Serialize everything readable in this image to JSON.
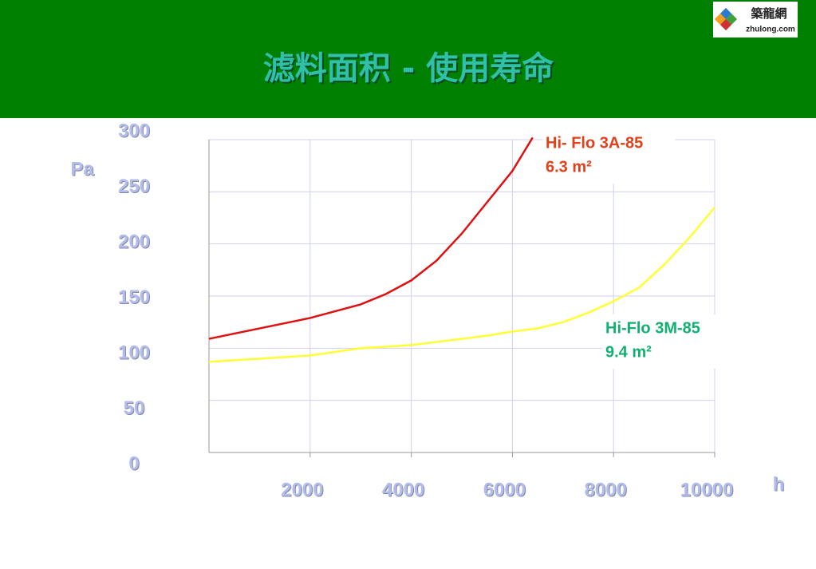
{
  "logo": {
    "name": "築龍網",
    "site": "zhulong.com"
  },
  "chart_data": {
    "type": "line",
    "title": "滤料面积 - 使用寿命",
    "y_label": "Pa",
    "x_label": "h",
    "xlim": [
      0,
      10000
    ],
    "xticks": [
      2000,
      4000,
      6000,
      8000,
      10000
    ],
    "ylim": [
      0,
      300
    ],
    "yticks": [
      0,
      50,
      100,
      150,
      200,
      250,
      300
    ],
    "grid": true,
    "series": [
      {
        "name": "Hi- Flo 3A-85",
        "label": "6.3 m²",
        "color": "#e01010",
        "x": [
          0,
          2000,
          3000,
          3500,
          4000,
          4500,
          5000,
          5500,
          6000,
          6400
        ],
        "values": [
          109,
          129,
          142,
          152,
          165,
          184,
          210,
          240,
          270,
          302
        ]
      },
      {
        "name": "Hi-Flo 3M-85",
        "label": "9.4 m²",
        "color": "#ffff33",
        "x": [
          0,
          2000,
          3000,
          4000,
          5000,
          5500,
          6000,
          6500,
          7000,
          7500,
          8000,
          8500,
          9000,
          9500,
          10000
        ],
        "values": [
          87,
          93,
          100,
          103,
          109,
          112,
          116,
          119,
          125,
          134,
          145,
          158,
          180,
          206,
          235
        ]
      }
    ]
  }
}
